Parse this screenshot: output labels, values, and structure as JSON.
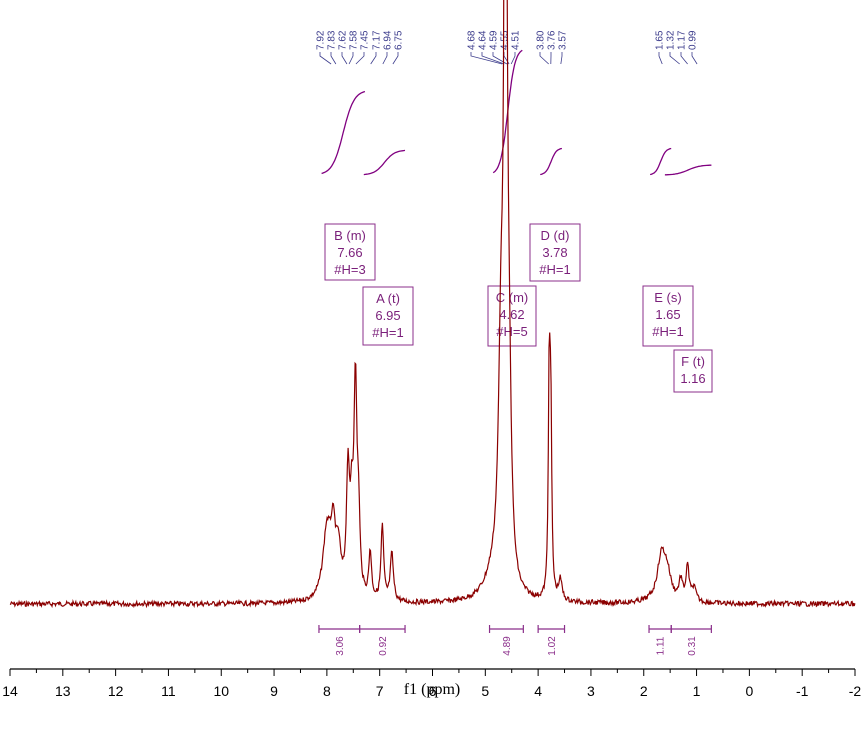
{
  "chart_data": {
    "type": "line",
    "xlabel": "f1 (ppm)",
    "xlim": [
      14,
      -2
    ],
    "x_reversed": true,
    "x_ticks": [
      "14",
      "13",
      "12",
      "11",
      "10",
      "9",
      "8",
      "7",
      "6",
      "5",
      "4",
      "3",
      "2",
      "1",
      "0",
      "-1",
      "-2"
    ],
    "colors": {
      "spectrum": "#8b0000",
      "integral": "#800080",
      "label": "#3c3c8c",
      "box": "#8b2f8b"
    },
    "series": [
      {
        "values_note": "",
        "peaks": [
          {
            "ppm": 8.0,
            "height": 0.1,
            "width": 0.09
          },
          {
            "ppm": 7.88,
            "height": 0.09,
            "width": 0.06
          },
          {
            "ppm": 7.78,
            "height": 0.06,
            "width": 0.05
          },
          {
            "ppm": 7.6,
            "height": 0.18,
            "width": 0.035
          },
          {
            "ppm": 7.53,
            "height": 0.1,
            "width": 0.03
          },
          {
            "ppm": 7.46,
            "height": 0.31,
            "width": 0.035
          },
          {
            "ppm": 7.4,
            "height": 0.1,
            "width": 0.03
          },
          {
            "ppm": 7.18,
            "height": 0.07,
            "width": 0.03
          },
          {
            "ppm": 6.95,
            "height": 0.11,
            "width": 0.03
          },
          {
            "ppm": 6.77,
            "height": 0.07,
            "width": 0.035
          },
          {
            "ppm": 4.7,
            "height": 0.35,
            "width": 0.06
          },
          {
            "ppm": 4.63,
            "height": 0.8,
            "width": 0.025
          },
          {
            "ppm": 4.6,
            "height": 0.55,
            "width": 0.03
          },
          {
            "ppm": 4.55,
            "height": 0.25,
            "width": 0.05
          },
          {
            "ppm": 4.85,
            "height": 0.03,
            "width": 0.2
          },
          {
            "ppm": 3.79,
            "height": 0.32,
            "width": 0.02
          },
          {
            "ppm": 3.76,
            "height": 0.26,
            "width": 0.02
          },
          {
            "ppm": 3.58,
            "height": 0.03,
            "width": 0.04
          },
          {
            "ppm": 1.66,
            "height": 0.07,
            "width": 0.1
          },
          {
            "ppm": 1.55,
            "height": 0.03,
            "width": 0.08
          },
          {
            "ppm": 1.3,
            "height": 0.03,
            "width": 0.04
          },
          {
            "ppm": 1.17,
            "height": 0.05,
            "width": 0.035
          },
          {
            "ppm": 1.05,
            "height": 0.02,
            "width": 0.05
          }
        ]
      }
    ],
    "peak_labels": [
      "7.92",
      "7.83",
      "7.62",
      "7.58",
      "7.45",
      "7.17",
      "6.94",
      "6.75",
      "4.68",
      "4.64",
      "4.59",
      "4.55",
      "4.51",
      "3.80",
      "3.76",
      "3.57",
      "1.65",
      "1.32",
      "1.17",
      "0.99"
    ],
    "multiplets": [
      {
        "id": "B",
        "line1": "B (m)",
        "line2": "7.66",
        "line3": "#H=3"
      },
      {
        "id": "A",
        "line1": "A (t)",
        "line2": "6.95",
        "line3": "#H=1"
      },
      {
        "id": "C",
        "line1": "C (m)",
        "line2": "4.62",
        "line3": "#H=5"
      },
      {
        "id": "D",
        "line1": "D (d)",
        "line2": "3.78",
        "line3": "#H=1"
      },
      {
        "id": "E",
        "line1": "E (s)",
        "line2": "1.65",
        "line3": "#H=1"
      },
      {
        "id": "F",
        "line1": "F (t)",
        "line2": "1.16",
        "line3": ""
      }
    ],
    "integrals": [
      {
        "from": 8.15,
        "to": 7.38,
        "label": "3.06"
      },
      {
        "from": 7.38,
        "to": 6.52,
        "label": "0.92"
      },
      {
        "from": 4.92,
        "to": 4.28,
        "label": "4.89"
      },
      {
        "from": 4.0,
        "to": 3.5,
        "label": "1.02"
      },
      {
        "from": 1.9,
        "to": 1.48,
        "label": "1.11"
      },
      {
        "from": 1.48,
        "to": 0.72,
        "label": "0.31"
      }
    ]
  }
}
